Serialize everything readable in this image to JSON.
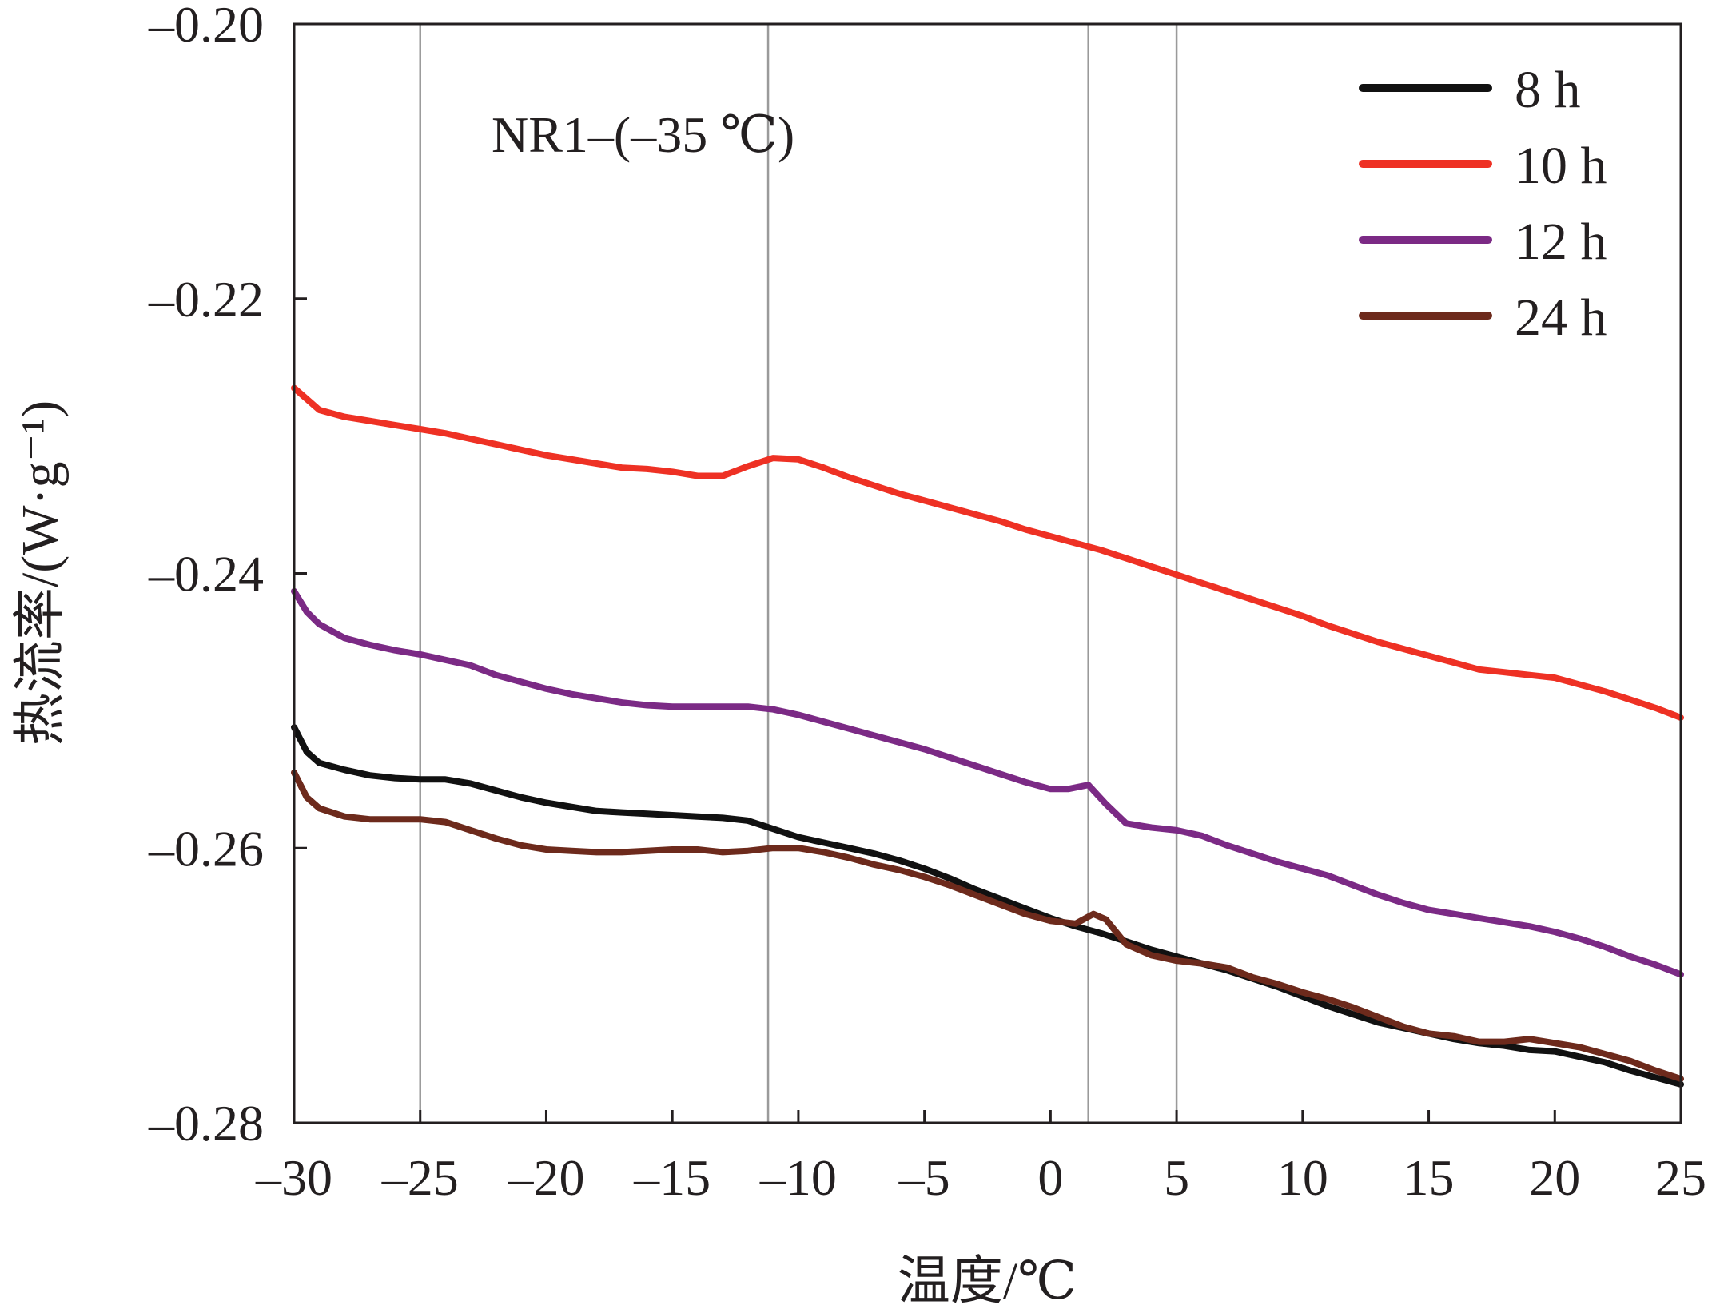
{
  "chart_data": {
    "type": "line",
    "annotation": "NR1–(–35 ℃)",
    "xlabel": "温度/℃",
    "ylabel": "热流率/(W·g⁻¹)",
    "xlim": [
      -30,
      25
    ],
    "ylim": [
      -0.28,
      -0.2
    ],
    "x_ticks": [
      -30,
      -25,
      -20,
      -15,
      -10,
      -5,
      0,
      5,
      10,
      15,
      20,
      25
    ],
    "x_tick_labels": [
      "–30",
      "–25",
      "–20",
      "–15",
      "–10",
      "–5",
      "0",
      "5",
      "10",
      "15",
      "20",
      "25"
    ],
    "y_ticks": [
      -0.28,
      -0.26,
      -0.24,
      -0.22,
      -0.2
    ],
    "y_tick_labels": [
      "–0.28",
      "–0.26",
      "–0.24",
      "–0.22",
      "–0.20"
    ],
    "reference_lines_x": [
      -25,
      -11.2,
      1.5,
      5
    ],
    "legend_position": "top-right",
    "grid": false,
    "series": [
      {
        "name": "8 h",
        "color": "#111111",
        "x": [
          -30,
          -29.5,
          -29,
          -28,
          -27,
          -26,
          -25,
          -24,
          -23,
          -22,
          -21,
          -20,
          -19,
          -18,
          -17,
          -16,
          -15,
          -14,
          -13,
          -12,
          -11,
          -10,
          -9,
          -8,
          -7,
          -6,
          -5,
          -4,
          -3,
          -2,
          -1,
          0,
          1,
          2,
          3,
          4,
          5,
          6,
          7,
          8,
          9,
          10,
          11,
          12,
          13,
          14,
          15,
          16,
          17,
          18,
          19,
          20,
          21,
          22,
          23,
          24,
          25
        ],
        "y": [
          -0.2512,
          -0.253,
          -0.2538,
          -0.2543,
          -0.2547,
          -0.2549,
          -0.255,
          -0.255,
          -0.2553,
          -0.2558,
          -0.2563,
          -0.2567,
          -0.257,
          -0.2573,
          -0.2574,
          -0.2575,
          -0.2576,
          -0.2577,
          -0.2578,
          -0.258,
          -0.2586,
          -0.2592,
          -0.2596,
          -0.26,
          -0.2604,
          -0.2609,
          -0.2615,
          -0.2622,
          -0.263,
          -0.2637,
          -0.2644,
          -0.2651,
          -0.2657,
          -0.2662,
          -0.2668,
          -0.2674,
          -0.2679,
          -0.2684,
          -0.2689,
          -0.2695,
          -0.2701,
          -0.2708,
          -0.2715,
          -0.2721,
          -0.2727,
          -0.2731,
          -0.2735,
          -0.2739,
          -0.2742,
          -0.2744,
          -0.2747,
          -0.2748,
          -0.2752,
          -0.2756,
          -0.2762,
          -0.2767,
          -0.2772
        ]
      },
      {
        "name": "10 h",
        "color": "#ee3124",
        "x": [
          -30,
          -29,
          -28,
          -27,
          -26,
          -25,
          -24,
          -23,
          -22,
          -21,
          -20,
          -19,
          -18,
          -17,
          -16,
          -15,
          -14,
          -13,
          -12,
          -11,
          -10,
          -9,
          -8,
          -7,
          -6,
          -5,
          -4,
          -3,
          -2,
          -1,
          0,
          1,
          2,
          3,
          4,
          5,
          6,
          7,
          8,
          9,
          10,
          11,
          12,
          13,
          14,
          15,
          16,
          17,
          18,
          19,
          20,
          21,
          22,
          23,
          24,
          25
        ],
        "y": [
          -0.2265,
          -0.2281,
          -0.2286,
          -0.2289,
          -0.2292,
          -0.2295,
          -0.2298,
          -0.2302,
          -0.2306,
          -0.231,
          -0.2314,
          -0.2317,
          -0.232,
          -0.2323,
          -0.2324,
          -0.2326,
          -0.2329,
          -0.2329,
          -0.2322,
          -0.2316,
          -0.2317,
          -0.2323,
          -0.233,
          -0.2336,
          -0.2342,
          -0.2347,
          -0.2352,
          -0.2357,
          -0.2362,
          -0.2368,
          -0.2373,
          -0.2378,
          -0.2383,
          -0.2389,
          -0.2395,
          -0.2401,
          -0.2407,
          -0.2413,
          -0.2419,
          -0.2425,
          -0.2431,
          -0.2438,
          -0.2444,
          -0.245,
          -0.2455,
          -0.246,
          -0.2465,
          -0.247,
          -0.2472,
          -0.2474,
          -0.2476,
          -0.2481,
          -0.2486,
          -0.2492,
          -0.2498,
          -0.2505
        ]
      },
      {
        "name": "12 h",
        "color": "#7b2a85",
        "x": [
          -30,
          -29.5,
          -29,
          -28,
          -27,
          -26,
          -25,
          -24,
          -23,
          -22,
          -21,
          -20,
          -19,
          -18,
          -17,
          -16,
          -15,
          -14,
          -13,
          -12,
          -11,
          -10,
          -9,
          -8,
          -7,
          -6,
          -5,
          -4,
          -3,
          -2,
          -1,
          0,
          0.7,
          1.5,
          2.2,
          3,
          4,
          5,
          6,
          7,
          8,
          9,
          10,
          11,
          12,
          13,
          14,
          15,
          16,
          17,
          18,
          19,
          20,
          21,
          22,
          23,
          24,
          25
        ],
        "y": [
          -0.2413,
          -0.2428,
          -0.2437,
          -0.2447,
          -0.2452,
          -0.2456,
          -0.2459,
          -0.2463,
          -0.2467,
          -0.2474,
          -0.2479,
          -0.2484,
          -0.2488,
          -0.2491,
          -0.2494,
          -0.2496,
          -0.2497,
          -0.2497,
          -0.2497,
          -0.2497,
          -0.2499,
          -0.2503,
          -0.2508,
          -0.2513,
          -0.2518,
          -0.2523,
          -0.2528,
          -0.2534,
          -0.254,
          -0.2546,
          -0.2552,
          -0.2557,
          -0.2557,
          -0.2554,
          -0.2568,
          -0.2582,
          -0.2585,
          -0.2587,
          -0.2591,
          -0.2598,
          -0.2604,
          -0.261,
          -0.2615,
          -0.262,
          -0.2627,
          -0.2634,
          -0.264,
          -0.2645,
          -0.2648,
          -0.2651,
          -0.2654,
          -0.2657,
          -0.2661,
          -0.2666,
          -0.2672,
          -0.2679,
          -0.2685,
          -0.2692
        ]
      },
      {
        "name": "24 h",
        "color": "#6d2a1c",
        "x": [
          -30,
          -29.5,
          -29,
          -28,
          -27,
          -26,
          -25,
          -24,
          -23,
          -22,
          -21,
          -20,
          -19,
          -18,
          -17,
          -16,
          -15,
          -14,
          -13,
          -12,
          -11,
          -10,
          -9,
          -8,
          -7,
          -6,
          -5,
          -4,
          -3,
          -2,
          -1,
          0,
          1,
          1.7,
          2.2,
          3,
          4,
          5,
          6,
          7,
          8,
          9,
          10,
          11,
          12,
          13,
          14,
          15,
          16,
          17,
          18,
          19,
          20,
          21,
          22,
          23,
          24,
          25
        ],
        "y": [
          -0.2545,
          -0.2563,
          -0.2571,
          -0.2577,
          -0.2579,
          -0.2579,
          -0.2579,
          -0.2581,
          -0.2587,
          -0.2593,
          -0.2598,
          -0.2601,
          -0.2602,
          -0.2603,
          -0.2603,
          -0.2602,
          -0.2601,
          -0.2601,
          -0.2603,
          -0.2602,
          -0.26,
          -0.26,
          -0.2603,
          -0.2607,
          -0.2612,
          -0.2616,
          -0.2621,
          -0.2627,
          -0.2634,
          -0.2641,
          -0.2648,
          -0.2653,
          -0.2655,
          -0.2648,
          -0.2652,
          -0.267,
          -0.2678,
          -0.2682,
          -0.2684,
          -0.2687,
          -0.2694,
          -0.2699,
          -0.2705,
          -0.271,
          -0.2716,
          -0.2723,
          -0.273,
          -0.2735,
          -0.2737,
          -0.2741,
          -0.2741,
          -0.2739,
          -0.2742,
          -0.2745,
          -0.275,
          -0.2755,
          -0.2762,
          -0.2768
        ]
      }
    ]
  }
}
